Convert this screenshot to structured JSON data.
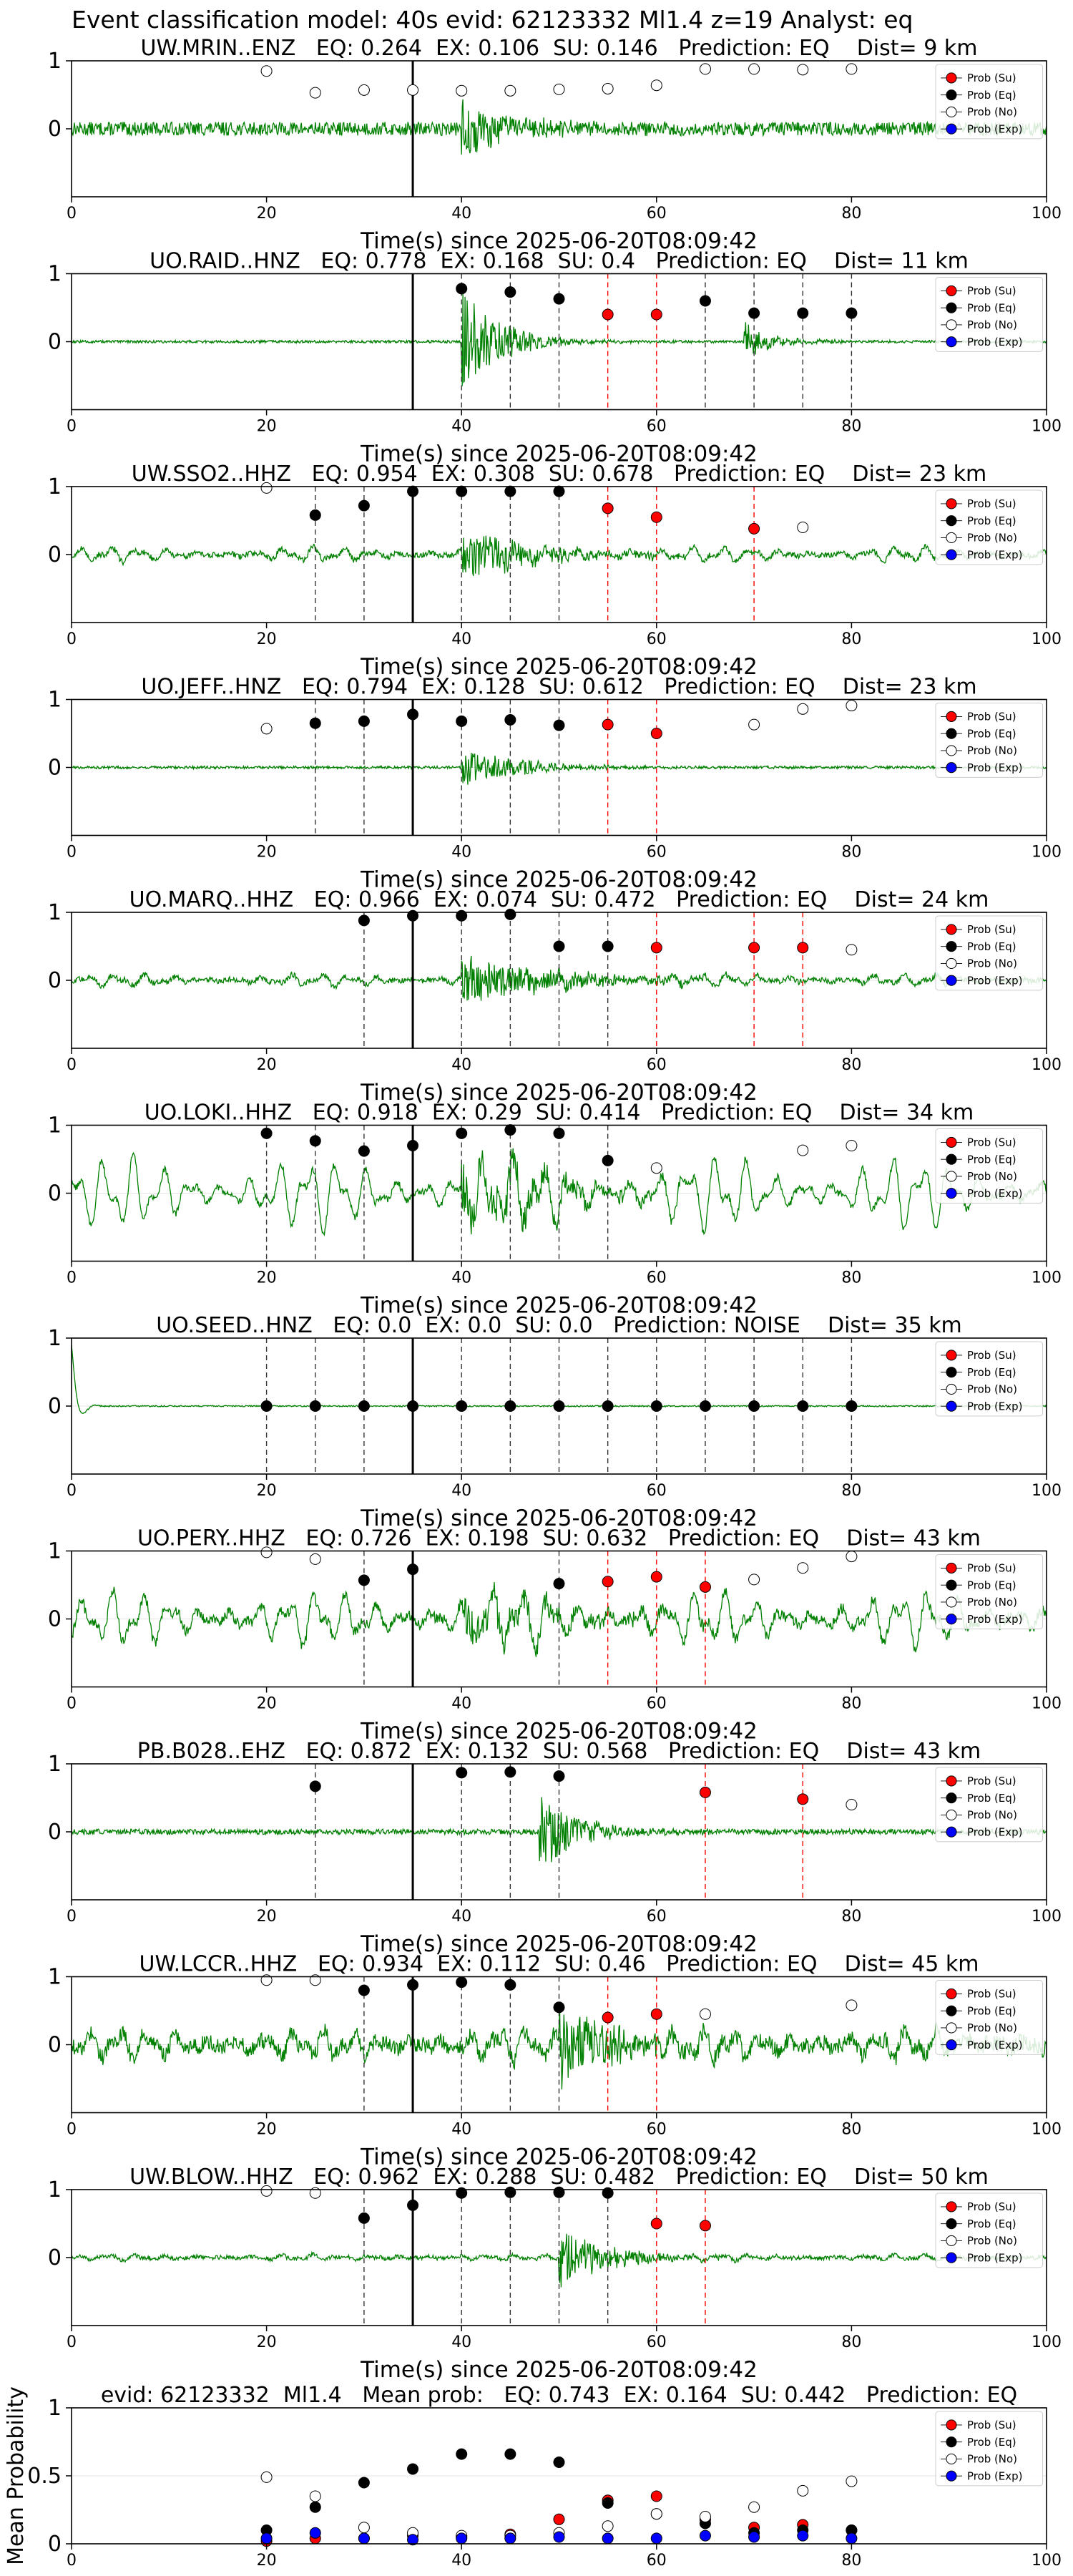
{
  "page_title": "Event classification model: 40s evid: 62123332 Ml1.4 z=19 Analyst: eq",
  "colors": {
    "waveform": "#008000",
    "prob_su": "#ff0000",
    "prob_eq": "#000000",
    "prob_no": "#ffffff",
    "prob_exp": "#0000ff",
    "eq_window_line": "#333333",
    "su_window_line": "#ff0000",
    "event_line": "#000000"
  },
  "legend": [
    "Prob (Su)",
    "Prob (Eq)",
    "Prob (No)",
    "Prob (Exp)"
  ],
  "xlabel": "Time(s) since 2025-06-20T08:09:42",
  "chart_data": [
    {
      "type": "scatter",
      "title": "UW.MRIN..ENZ   EQ: 0.264  EX: 0.106  SU: 0.146   Prediction: EQ    Dist= 9 km",
      "xlabel": "Time(s) since 2025-06-20T08:09:42",
      "xlim": [
        0,
        100
      ],
      "ylim": [
        -1,
        1
      ],
      "xticks": [
        0,
        20,
        40,
        60,
        80,
        100
      ],
      "yticks": [
        0,
        1
      ],
      "legend_position": "top-right",
      "event_line_x": 35,
      "waveform": {
        "amp": 0.1,
        "burst_start": 40,
        "burst_amp": 0.45,
        "burst_decay": 5,
        "lowfreq": 0
      },
      "series": [
        {
          "name": "Prob (No)",
          "x": [
            20,
            25,
            30,
            35,
            40,
            45,
            50,
            55,
            60,
            65,
            70,
            75,
            80
          ],
          "y": [
            0.85,
            0.53,
            0.57,
            0.57,
            0.56,
            0.56,
            0.58,
            0.59,
            0.64,
            0.88,
            0.88,
            0.87,
            0.88
          ]
        }
      ],
      "eq_windows": [],
      "su_windows": []
    },
    {
      "type": "scatter",
      "title": "UO.RAID..HNZ   EQ: 0.778  EX: 0.168  SU: 0.4   Prediction: EQ    Dist= 11 km",
      "xlabel": "Time(s) since 2025-06-20T08:09:42",
      "xlim": [
        0,
        100
      ],
      "ylim": [
        -1,
        1
      ],
      "xticks": [
        0,
        20,
        40,
        60,
        80,
        100
      ],
      "yticks": [
        0,
        1
      ],
      "legend_position": "top-right",
      "event_line_x": 35,
      "waveform": {
        "amp": 0.02,
        "burst_start": 40,
        "burst_amp": 0.8,
        "burst_decay": 4,
        "burst2_start": 69,
        "burst2_amp": 0.3,
        "lowfreq": 0
      },
      "series": [
        {
          "name": "Prob (Eq)",
          "x": [
            40,
            45,
            50,
            65,
            70,
            75,
            80
          ],
          "y": [
            0.78,
            0.73,
            0.63,
            0.6,
            0.42,
            0.42,
            0.42
          ]
        },
        {
          "name": "Prob (Su)",
          "x": [
            55,
            60
          ],
          "y": [
            0.4,
            0.4
          ]
        }
      ],
      "eq_windows": [
        40,
        45,
        50,
        65,
        70,
        75,
        80
      ],
      "su_windows": [
        55,
        60
      ]
    },
    {
      "type": "scatter",
      "title": "UW.SSO2..HHZ   EQ: 0.954  EX: 0.308  SU: 0.678   Prediction: EQ    Dist= 23 km",
      "xlabel": "Time(s) since 2025-06-20T08:09:42",
      "xlim": [
        0,
        100
      ],
      "ylim": [
        -1,
        1
      ],
      "xticks": [
        0,
        20,
        40,
        60,
        80,
        100
      ],
      "yticks": [
        0,
        1
      ],
      "legend_position": "top-right",
      "event_line_x": 35,
      "waveform": {
        "amp": 0.04,
        "burst_start": 40,
        "burst_amp": 0.35,
        "burst_decay": 8,
        "lowfreq": 0.12
      },
      "series": [
        {
          "name": "Prob (No)",
          "x": [
            20,
            75
          ],
          "y": [
            0.98,
            0.4
          ]
        },
        {
          "name": "Prob (Eq)",
          "x": [
            25,
            30,
            35,
            40,
            45,
            50
          ],
          "y": [
            0.58,
            0.72,
            0.93,
            0.93,
            0.93,
            0.93
          ]
        },
        {
          "name": "Prob (Su)",
          "x": [
            55,
            60,
            70
          ],
          "y": [
            0.68,
            0.55,
            0.38
          ]
        }
      ],
      "eq_windows": [
        25,
        30,
        40,
        45,
        50
      ],
      "su_windows": [
        55,
        60,
        70
      ]
    },
    {
      "type": "scatter",
      "title": "UO.JEFF..HNZ   EQ: 0.794  EX: 0.128  SU: 0.612   Prediction: EQ    Dist= 23 km",
      "xlabel": "Time(s) since 2025-06-20T08:09:42",
      "xlim": [
        0,
        100
      ],
      "ylim": [
        -1,
        1
      ],
      "xticks": [
        0,
        20,
        40,
        60,
        80,
        100
      ],
      "yticks": [
        0,
        1
      ],
      "legend_position": "top-right",
      "event_line_x": 35,
      "waveform": {
        "amp": 0.02,
        "burst_start": 40,
        "burst_amp": 0.3,
        "burst_decay": 6,
        "lowfreq": 0
      },
      "series": [
        {
          "name": "Prob (No)",
          "x": [
            20,
            70,
            75,
            80
          ],
          "y": [
            0.57,
            0.63,
            0.86,
            0.91
          ]
        },
        {
          "name": "Prob (Eq)",
          "x": [
            25,
            30,
            35,
            40,
            45,
            50
          ],
          "y": [
            0.65,
            0.68,
            0.78,
            0.68,
            0.7,
            0.62
          ]
        },
        {
          "name": "Prob (Su)",
          "x": [
            55,
            60
          ],
          "y": [
            0.63,
            0.5
          ]
        }
      ],
      "eq_windows": [
        25,
        30,
        40,
        45,
        50
      ],
      "su_windows": [
        55,
        60
      ]
    },
    {
      "type": "scatter",
      "title": "UO.MARQ..HHZ   EQ: 0.966  EX: 0.074  SU: 0.472   Prediction: EQ    Dist= 24 km",
      "xlabel": "Time(s) since 2025-06-20T08:09:42",
      "xlim": [
        0,
        100
      ],
      "ylim": [
        -1,
        1
      ],
      "xticks": [
        0,
        20,
        40,
        60,
        80,
        100
      ],
      "yticks": [
        0,
        1
      ],
      "legend_position": "top-right",
      "event_line_x": 35,
      "waveform": {
        "amp": 0.04,
        "burst_start": 40,
        "burst_amp": 0.35,
        "burst_decay": 10,
        "lowfreq": 0.1
      },
      "series": [
        {
          "name": "Prob (Eq)",
          "x": [
            30,
            35,
            40,
            45,
            50,
            55
          ],
          "y": [
            0.88,
            0.95,
            0.95,
            0.97,
            0.5,
            0.5
          ]
        },
        {
          "name": "Prob (Su)",
          "x": [
            60,
            70,
            75
          ],
          "y": [
            0.48,
            0.48,
            0.48
          ]
        },
        {
          "name": "Prob (No)",
          "x": [
            80
          ],
          "y": [
            0.45
          ]
        }
      ],
      "eq_windows": [
        30,
        40,
        45,
        50,
        55
      ],
      "su_windows": [
        60,
        70,
        75
      ]
    },
    {
      "type": "scatter",
      "title": "UO.LOKI..HHZ   EQ: 0.918  EX: 0.29  SU: 0.414   Prediction: EQ    Dist= 34 km",
      "xlabel": "Time(s) since 2025-06-20T08:09:42",
      "xlim": [
        0,
        100
      ],
      "ylim": [
        -1,
        1
      ],
      "xticks": [
        0,
        20,
        40,
        60,
        80,
        100
      ],
      "yticks": [
        0,
        1
      ],
      "legend_position": "top-right",
      "event_line_x": 35,
      "waveform": {
        "amp": 0.05,
        "burst_start": 40,
        "burst_amp": 0.4,
        "burst_decay": 10,
        "lowfreq": 0.6
      },
      "series": [
        {
          "name": "Prob (Eq)",
          "x": [
            20,
            25,
            30,
            35,
            40,
            45,
            50,
            55
          ],
          "y": [
            0.88,
            0.77,
            0.62,
            0.7,
            0.88,
            0.93,
            0.88,
            0.48
          ]
        },
        {
          "name": "Prob (No)",
          "x": [
            60,
            75,
            80
          ],
          "y": [
            0.37,
            0.63,
            0.7
          ]
        }
      ],
      "eq_windows": [
        20,
        25,
        30,
        40,
        45,
        50,
        55
      ],
      "su_windows": []
    },
    {
      "type": "scatter",
      "title": "UO.SEED..HNZ   EQ: 0.0  EX: 0.0  SU: 0.0   Prediction: NOISE    Dist= 35 km",
      "xlabel": "Time(s) since 2025-06-20T08:09:42",
      "xlim": [
        0,
        100
      ],
      "ylim": [
        -1,
        1
      ],
      "xticks": [
        0,
        20,
        40,
        60,
        80,
        100
      ],
      "yticks": [
        0,
        1
      ],
      "legend_position": "top-right",
      "event_line_x": 35,
      "waveform": {
        "amp": 0.01,
        "burst_start": 999,
        "burst_amp": 0,
        "burst_decay": 1,
        "lowfreq": 0,
        "start_spike": 0.9
      },
      "series": [
        {
          "name": "Prob (Eq)",
          "x": [
            20,
            25,
            30,
            35,
            40,
            45,
            50,
            55,
            60,
            65,
            70,
            75,
            80
          ],
          "y": [
            0,
            0,
            0,
            0,
            0,
            0,
            0,
            0,
            0,
            0,
            0,
            0,
            0
          ]
        }
      ],
      "eq_windows": [
        20,
        25,
        30,
        40,
        45,
        50,
        55,
        60,
        65,
        70,
        75,
        80
      ],
      "su_windows": []
    },
    {
      "type": "scatter",
      "title": "UO.PERY..HHZ   EQ: 0.726  EX: 0.198  SU: 0.632   Prediction: EQ    Dist= 43 km",
      "xlabel": "Time(s) since 2025-06-20T08:09:42",
      "xlim": [
        0,
        100
      ],
      "ylim": [
        -1,
        1
      ],
      "xticks": [
        0,
        20,
        40,
        60,
        80,
        100
      ],
      "yticks": [
        0,
        1
      ],
      "legend_position": "top-right",
      "event_line_x": 35,
      "waveform": {
        "amp": 0.08,
        "burst_start": 40,
        "burst_amp": 0.3,
        "burst_decay": 10,
        "lowfreq": 0.45
      },
      "series": [
        {
          "name": "Prob (No)",
          "x": [
            20,
            25,
            70,
            75,
            80
          ],
          "y": [
            0.98,
            0.88,
            0.58,
            0.75,
            0.92
          ]
        },
        {
          "name": "Prob (Eq)",
          "x": [
            30,
            35,
            50
          ],
          "y": [
            0.57,
            0.73,
            0.52
          ]
        },
        {
          "name": "Prob (Su)",
          "x": [
            55,
            60,
            65
          ],
          "y": [
            0.55,
            0.62,
            0.47
          ]
        }
      ],
      "eq_windows": [
        30,
        50
      ],
      "su_windows": [
        55,
        60,
        65
      ]
    },
    {
      "type": "scatter",
      "title": "PB.B028..EHZ   EQ: 0.872  EX: 0.132  SU: 0.568   Prediction: EQ    Dist= 43 km",
      "xlabel": "Time(s) since 2025-06-20T08:09:42",
      "xlim": [
        0,
        100
      ],
      "ylim": [
        -1,
        1
      ],
      "xticks": [
        0,
        20,
        40,
        60,
        80,
        100
      ],
      "yticks": [
        0,
        1
      ],
      "legend_position": "top-right",
      "event_line_x": 35,
      "waveform": {
        "amp": 0.04,
        "burst_start": 48,
        "burst_amp": 0.6,
        "burst_decay": 4,
        "lowfreq": 0
      },
      "series": [
        {
          "name": "Prob (Eq)",
          "x": [
            25,
            40,
            45,
            50
          ],
          "y": [
            0.67,
            0.87,
            0.88,
            0.82
          ]
        },
        {
          "name": "Prob (Su)",
          "x": [
            65,
            75
          ],
          "y": [
            0.58,
            0.48
          ]
        },
        {
          "name": "Prob (No)",
          "x": [
            80
          ],
          "y": [
            0.4
          ]
        }
      ],
      "eq_windows": [
        25,
        40,
        45,
        50
      ],
      "su_windows": [
        65,
        75
      ]
    },
    {
      "type": "scatter",
      "title": "UW.LCCR..HHZ   EQ: 0.934  EX: 0.112  SU: 0.46   Prediction: EQ    Dist= 45 km",
      "xlabel": "Time(s) since 2025-06-20T08:09:42",
      "xlim": [
        0,
        100
      ],
      "ylim": [
        -1,
        1
      ],
      "xticks": [
        0,
        20,
        40,
        60,
        80,
        100
      ],
      "yticks": [
        0,
        1
      ],
      "legend_position": "top-right",
      "event_line_x": 35,
      "waveform": {
        "amp": 0.12,
        "burst_start": 50,
        "burst_amp": 0.6,
        "burst_decay": 6,
        "lowfreq": 0.25
      },
      "series": [
        {
          "name": "Prob (No)",
          "x": [
            20,
            25,
            65,
            80
          ],
          "y": [
            0.95,
            0.95,
            0.45,
            0.58
          ]
        },
        {
          "name": "Prob (Eq)",
          "x": [
            30,
            35,
            40,
            45,
            50
          ],
          "y": [
            0.8,
            0.88,
            0.92,
            0.88,
            0.55
          ]
        },
        {
          "name": "Prob (Su)",
          "x": [
            55,
            60
          ],
          "y": [
            0.4,
            0.45
          ]
        }
      ],
      "eq_windows": [
        30,
        40,
        45,
        50
      ],
      "su_windows": [
        55,
        60
      ]
    },
    {
      "type": "scatter",
      "title": "UW.BLOW..HHZ   EQ: 0.962  EX: 0.288  SU: 0.482   Prediction: EQ    Dist= 50 km",
      "xlabel": "Time(s) since 2025-06-20T08:09:42",
      "xlim": [
        0,
        100
      ],
      "ylim": [
        -1,
        1
      ],
      "xticks": [
        0,
        20,
        40,
        60,
        80,
        100
      ],
      "yticks": [
        0,
        1
      ],
      "legend_position": "top-right",
      "event_line_x": 35,
      "waveform": {
        "amp": 0.03,
        "burst_start": 50,
        "burst_amp": 0.45,
        "burst_decay": 5,
        "lowfreq": 0.05
      },
      "series": [
        {
          "name": "Prob (No)",
          "x": [
            20,
            25
          ],
          "y": [
            0.98,
            0.95
          ]
        },
        {
          "name": "Prob (Eq)",
          "x": [
            30,
            35,
            40,
            45,
            50,
            55
          ],
          "y": [
            0.58,
            0.77,
            0.95,
            0.96,
            0.96,
            0.95
          ]
        },
        {
          "name": "Prob (Su)",
          "x": [
            60,
            65
          ],
          "y": [
            0.5,
            0.47
          ]
        }
      ],
      "eq_windows": [
        30,
        40,
        45,
        50,
        55
      ],
      "su_windows": [
        60,
        65
      ]
    },
    {
      "type": "scatter",
      "title": "evid: 62123332  Ml1.4   Mean prob:   EQ: 0.743  EX: 0.164  SU: 0.442   Prediction: EQ",
      "xlabel": "",
      "ylabel": "Mean Probability",
      "xlim": [
        0,
        100
      ],
      "ylim": [
        0,
        1
      ],
      "xticks": [
        0,
        20,
        40,
        60,
        80,
        100
      ],
      "yticks": [
        0.0,
        0.5,
        1.0
      ],
      "legend_position": "top-right",
      "series": [
        {
          "name": "Prob (Su)",
          "x": [
            20,
            25,
            30,
            35,
            40,
            45,
            50,
            55,
            60,
            65,
            70,
            75,
            80
          ],
          "y": [
            0.02,
            0.04,
            0.04,
            0.06,
            0.05,
            0.07,
            0.18,
            0.32,
            0.35,
            0.18,
            0.12,
            0.14,
            0.1
          ]
        },
        {
          "name": "Prob (Eq)",
          "x": [
            20,
            25,
            30,
            35,
            40,
            45,
            50,
            55,
            60,
            65,
            70,
            75,
            80
          ],
          "y": [
            0.1,
            0.27,
            0.45,
            0.55,
            0.66,
            0.66,
            0.6,
            0.3,
            0.22,
            0.15,
            0.08,
            0.1,
            0.1
          ]
        },
        {
          "name": "Prob (No)",
          "x": [
            20,
            25,
            30,
            35,
            40,
            45,
            50,
            55,
            60,
            65,
            70,
            75,
            80
          ],
          "y": [
            0.49,
            0.35,
            0.12,
            0.08,
            0.06,
            0.06,
            0.08,
            0.13,
            0.22,
            0.2,
            0.27,
            0.39,
            0.46
          ]
        },
        {
          "name": "Prob (Exp)",
          "x": [
            20,
            25,
            30,
            35,
            40,
            45,
            50,
            55,
            60,
            65,
            70,
            75,
            80
          ],
          "y": [
            0.04,
            0.08,
            0.04,
            0.03,
            0.04,
            0.04,
            0.05,
            0.04,
            0.04,
            0.06,
            0.05,
            0.06,
            0.04
          ]
        }
      ]
    }
  ]
}
